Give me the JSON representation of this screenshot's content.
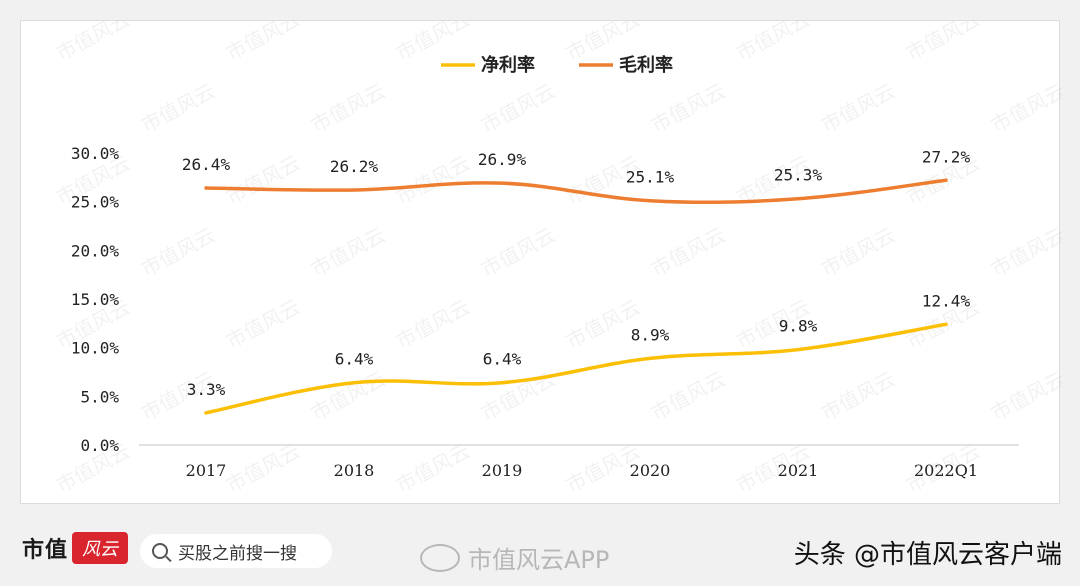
{
  "chart_data": {
    "type": "line",
    "categories": [
      "2017",
      "2018",
      "2019",
      "2020",
      "2021",
      "2022Q1"
    ],
    "series": [
      {
        "name": "净利率",
        "values": [
          3.3,
          6.4,
          6.4,
          8.9,
          9.8,
          12.4
        ],
        "labels": [
          "3.3%",
          "6.4%",
          "6.4%",
          "8.9%",
          "9.8%",
          "12.4%"
        ],
        "color": "#fbbf06"
      },
      {
        "name": "毛利率",
        "values": [
          26.4,
          26.2,
          26.9,
          25.1,
          25.3,
          27.2
        ],
        "labels": [
          "26.4%",
          "26.2%",
          "26.9%",
          "25.1%",
          "25.3%",
          "27.2%"
        ],
        "color": "#ed7d31"
      }
    ],
    "yticks": [
      "0.0%",
      "5.0%",
      "10.0%",
      "15.0%",
      "20.0%",
      "25.0%",
      "30.0%"
    ],
    "ylim": [
      0,
      30
    ],
    "legend": "top-center",
    "grid": false
  },
  "watermark": "市值风云",
  "footer": {
    "brand": "市值",
    "brand_seal": "风云",
    "search_placeholder": "买股之前搜一搜",
    "weibo_text": "市值风云APP",
    "credit": "头条 @市值风云客户端"
  }
}
